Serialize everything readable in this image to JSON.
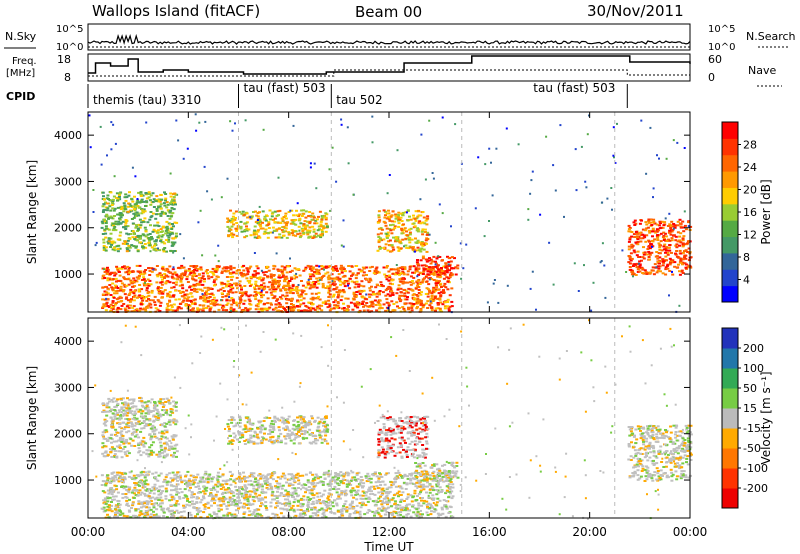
{
  "header": {
    "station": "Wallops Island (fitACF)",
    "beam": "Beam 00",
    "date": "30/Nov/2011"
  },
  "strip_labels": {
    "nsky": "N.Sky",
    "nsky_hi": "10^5",
    "nsky_lo": "10^0",
    "nsearch": "N.Search",
    "nsearch_hi": "10^5",
    "nsearch_lo": "10^0",
    "freq_line1": "Freq.",
    "freq_line2": "[MHz]",
    "freq_hi": "18",
    "freq_lo": "8",
    "nave": "Nave",
    "nave_hi": "60",
    "nave_lo": "0",
    "cpid": "CPID"
  },
  "cpid_segments": [
    {
      "label": "themis (tau) 3310",
      "start_hour": 0.0
    },
    {
      "label": "tau (fast) 503",
      "start_hour": 6.0
    },
    {
      "label": "tau 502",
      "start_hour": 9.7
    },
    {
      "label": "tau (fast) 503",
      "start_hour": 21.5
    }
  ],
  "x_axis": {
    "label": "Time UT",
    "range_hours": [
      0,
      24
    ],
    "ticks": [
      "00:00",
      "04:00",
      "08:00",
      "12:00",
      "16:00",
      "20:00",
      "00:00"
    ]
  },
  "power_panel": {
    "ylabel": "Slant Range [km]",
    "yticks": [
      "1000",
      "2000",
      "3000",
      "4000"
    ],
    "colorbar_label": "Power [dB]",
    "colorbar_ticks": [
      "4",
      "8",
      "12",
      "16",
      "20",
      "24",
      "28"
    ],
    "colors": [
      "#0000ff",
      "#2244cc",
      "#336699",
      "#449966",
      "#55aa44",
      "#99cc33",
      "#ffcc00",
      "#ff9900",
      "#ff6600",
      "#ff3300",
      "#ff0000"
    ]
  },
  "velocity_panel": {
    "ylabel": "Slant Range [km]",
    "yticks": [
      "1000",
      "2000",
      "3000",
      "4000"
    ],
    "colorbar_label": "Velocity [m s⁻¹]",
    "colorbar_ticks": [
      "200",
      "100",
      "50",
      "15",
      "-15",
      "-50",
      "-100",
      "-200"
    ],
    "colors": [
      "#2233bb",
      "#2277aa",
      "#33aa55",
      "#77cc44",
      "#bbbbbb",
      "#ffaa00",
      "#ff7700",
      "#ff3300",
      "#ee0000"
    ]
  },
  "chart_data": {
    "type": "heatmap",
    "title": "Wallops Island (fitACF)",
    "x_unit": "hours UT",
    "y_unit": "km",
    "xlim": [
      0,
      24
    ],
    "ylim": [
      180,
      4500
    ],
    "echo_regions": [
      {
        "t": [
          0.5,
          14.5
        ],
        "r": [
          200,
          1200
        ],
        "power_db": 24,
        "velocity": 0
      },
      {
        "t": [
          0.5,
          3.5
        ],
        "r": [
          1500,
          2800
        ],
        "power_db": 14,
        "velocity": 15
      },
      {
        "t": [
          5.5,
          9.5
        ],
        "r": [
          1800,
          2400
        ],
        "power_db": 18,
        "velocity": -15
      },
      {
        "t": [
          11.5,
          13.5
        ],
        "r": [
          1500,
          2400
        ],
        "power_db": 20,
        "velocity": -100
      },
      {
        "t": [
          13.0,
          14.7
        ],
        "r": [
          1000,
          1400
        ],
        "power_db": 28,
        "velocity": 0
      },
      {
        "t": [
          21.5,
          24.0
        ],
        "r": [
          1000,
          2200
        ],
        "power_db": 26,
        "velocity": -15
      }
    ]
  }
}
